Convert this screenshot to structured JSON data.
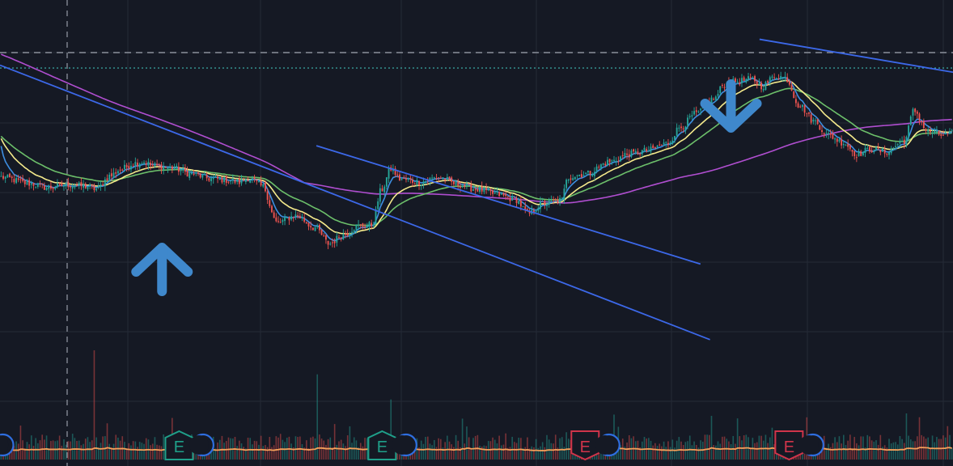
{
  "colors": {
    "background": "#151924",
    "grid": "#252a36",
    "candle_up": "#26a69a",
    "candle_down": "#ef5350",
    "ema_fast": "#3d8ee0",
    "ema_mid": "#f5ea8c",
    "ema_slow": "#6cbf6a",
    "ma_long": "#b04ed0",
    "trendline": "#3c68e8",
    "dashed_level": "#8c919c",
    "dotted_level": "#3fb8b0",
    "volume_ma": "#f5a05a",
    "earnings_beat": "#1fa08a",
    "earnings_miss": "#d0344a",
    "arrow": "#3f88cc"
  },
  "icons": {
    "buy_marker": "arrow-up-icon",
    "sell_marker": "arrow-down-icon",
    "earnings": "earnings-e-badge-icon",
    "dividends": "dividend-circle-icon"
  },
  "chart_data": {
    "type": "candlestick",
    "title": "",
    "xlabel": "",
    "ylabel": "",
    "grid": true,
    "price_anchors": [
      [
        0,
        0.4
      ],
      [
        0.03,
        0.31
      ],
      [
        0.05,
        0.25
      ],
      [
        0.07,
        0.29
      ],
      [
        0.09,
        0.27
      ],
      [
        0.1,
        0.23
      ],
      [
        0.115,
        0.42
      ],
      [
        0.125,
        0.51
      ],
      [
        0.14,
        0.6
      ],
      [
        0.15,
        0.62
      ],
      [
        0.16,
        0.56
      ],
      [
        0.18,
        0.53
      ],
      [
        0.2,
        0.45
      ],
      [
        0.22,
        0.38
      ],
      [
        0.24,
        0.36
      ],
      [
        0.25,
        0.33
      ],
      [
        0.26,
        0.39
      ],
      [
        0.275,
        0.27
      ],
      [
        0.29,
        -0.25
      ],
      [
        0.31,
        -0.15
      ],
      [
        0.33,
        -0.32
      ],
      [
        0.345,
        -0.55
      ],
      [
        0.36,
        -0.42
      ],
      [
        0.375,
        -0.3
      ],
      [
        0.39,
        -0.28
      ],
      [
        0.4,
        0.22
      ],
      [
        0.41,
        0.52
      ],
      [
        0.42,
        0.37
      ],
      [
        0.44,
        0.33
      ],
      [
        0.46,
        0.4
      ],
      [
        0.48,
        0.3
      ],
      [
        0.5,
        0.23
      ],
      [
        0.52,
        0.16
      ],
      [
        0.54,
        0.09
      ],
      [
        0.555,
        -0.12
      ],
      [
        0.57,
        0.03
      ],
      [
        0.59,
        0.07
      ],
      [
        0.595,
        0.4
      ],
      [
        0.615,
        0.45
      ],
      [
        0.64,
        0.62
      ],
      [
        0.66,
        0.73
      ],
      [
        0.68,
        0.78
      ],
      [
        0.7,
        0.88
      ],
      [
        0.715,
        1.12
      ],
      [
        0.73,
        1.3
      ],
      [
        0.75,
        1.52
      ],
      [
        0.76,
        1.72
      ],
      [
        0.775,
        1.77
      ],
      [
        0.79,
        1.8
      ],
      [
        0.8,
        1.7
      ],
      [
        0.815,
        1.85
      ],
      [
        0.825,
        1.82
      ],
      [
        0.84,
        1.42
      ],
      [
        0.855,
        1.2
      ],
      [
        0.87,
        1.0
      ],
      [
        0.885,
        0.9
      ],
      [
        0.9,
        0.73
      ],
      [
        0.915,
        0.8
      ],
      [
        0.93,
        0.76
      ],
      [
        0.95,
        0.92
      ],
      [
        0.96,
        1.35
      ],
      [
        0.975,
        1.05
      ],
      [
        0.99,
        1.0
      ],
      [
        1.0,
        1.02
      ]
    ],
    "moving_averages": [
      {
        "name": "",
        "kind": "ema",
        "period": 6,
        "color": "#3d8ee0"
      },
      {
        "name": "",
        "kind": "ema",
        "period": 18,
        "color": "#f5ea8c"
      },
      {
        "name": "",
        "kind": "ema",
        "period": 38,
        "color": "#6cbf6a"
      },
      {
        "name": "",
        "kind": "sma",
        "period": 140,
        "color": "#b04ed0"
      }
    ],
    "reference_levels": [
      {
        "value": 2.18,
        "style": "dashed"
      },
      {
        "value": 1.96,
        "style": "dotted"
      }
    ],
    "trendlines": [
      {
        "from": [
          0.0,
          2.0
        ],
        "to": [
          0.745,
          -1.92
        ]
      },
      {
        "from": [
          0.332,
          0.85
        ],
        "to": [
          0.735,
          -0.84
        ]
      },
      {
        "from": [
          0.797,
          2.37
        ],
        "to": [
          1.0,
          1.9
        ]
      }
    ],
    "markers": [
      {
        "type": "buy",
        "x": 0.17
      },
      {
        "type": "sell",
        "x": 0.767
      }
    ],
    "earnings_events": [
      {
        "x": 0.188,
        "result": "beat",
        "label": "E"
      },
      {
        "x": 0.401,
        "result": "beat",
        "label": "E"
      },
      {
        "x": 0.614,
        "result": "miss",
        "label": "E"
      },
      {
        "x": 0.828,
        "result": "miss",
        "label": "E"
      }
    ],
    "volume_spikes": [
      {
        "x": 0.098,
        "v": 1.0,
        "dir": "down"
      },
      {
        "x": 0.332,
        "v": 0.78,
        "dir": "up"
      },
      {
        "x": 0.41,
        "v": 0.55,
        "dir": "up"
      },
      {
        "x": 0.595,
        "v": 0.25,
        "dir": "up"
      },
      {
        "x": 0.65,
        "v": 0.3,
        "dir": "up"
      }
    ]
  }
}
